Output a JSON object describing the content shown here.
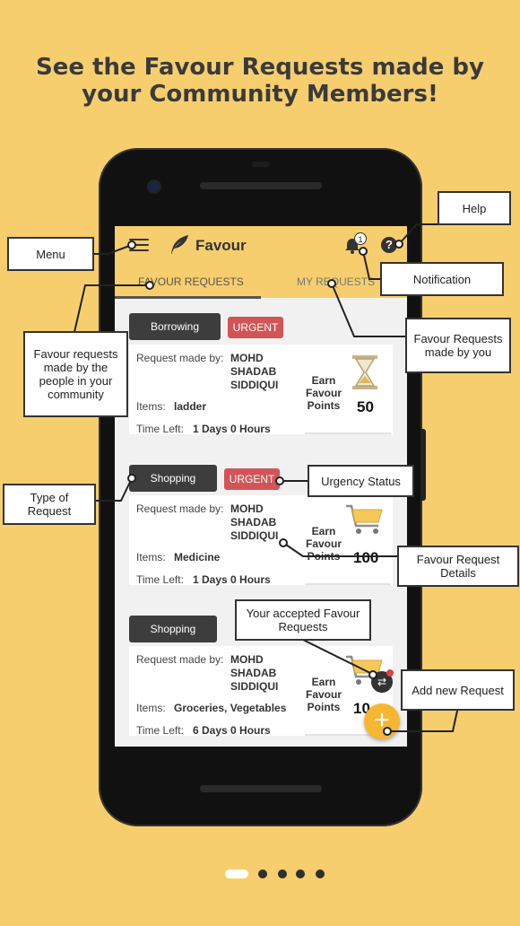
{
  "headline": {
    "line1": "See the Favour Requests made by",
    "line2": "your Community Members!"
  },
  "app": {
    "title": "Favour",
    "notification_count": "1",
    "help_symbol": "?",
    "tabs": [
      "FAVOUR REQUESTS",
      "MY REQUESTS"
    ],
    "fab_symbol": "+"
  },
  "cards": [
    {
      "type": "Borrowing",
      "urgent": "URGENT",
      "request_label": "Request made by:",
      "requester": [
        "MOHD",
        "SHADAB",
        "SIDDIQUI"
      ],
      "items_label": "Items:",
      "items": "ladder",
      "time_label": "Time Left:",
      "time_left": "1 Days 0 Hours",
      "earn": [
        "Earn",
        "Favour",
        "Points"
      ],
      "points": "50",
      "icon": "hourglass-icon"
    },
    {
      "type": "Shopping",
      "urgent": "URGENT",
      "request_label": "Request made by:",
      "requester": [
        "MOHD",
        "SHADAB",
        "SIDDIQUI"
      ],
      "items_label": "Items:",
      "items": "Medicine",
      "time_label": "Time Left:",
      "time_left": "1 Days 0 Hours",
      "earn": [
        "Earn",
        "Favour",
        "Points"
      ],
      "points": "100",
      "icon": "shopping-cart-icon"
    },
    {
      "type": "Shopping",
      "urgent": "",
      "request_label": "Request made by:",
      "requester": [
        "MOHD",
        "SHADAB",
        "SIDDIQUI"
      ],
      "items_label": "Items:",
      "items": "Groceries, Vegetables",
      "time_label": "Time Left:",
      "time_left": "6 Days 0 Hours",
      "earn": [
        "Earn",
        "Favour",
        "Points"
      ],
      "points": "10",
      "icon": "shopping-cart-icon"
    }
  ],
  "callouts": {
    "help": "Help",
    "menu": "Menu",
    "notification": "Notification",
    "favour_requests_people": "Favour requests made by the people in your community",
    "favour_requests_you": "Favour Requests made by you",
    "urgency": "Urgency Status",
    "type": "Type of Request",
    "details": "Favour Request Details",
    "accepted": "Your accepted Favour Requests",
    "add_new": "Add new Request"
  },
  "colors": {
    "background": "#F7CE6D",
    "urgent": "#D35457",
    "chip": "#3d3d3d",
    "fab": "#F5B731"
  },
  "pager": {
    "pages": 5,
    "active": 1
  }
}
